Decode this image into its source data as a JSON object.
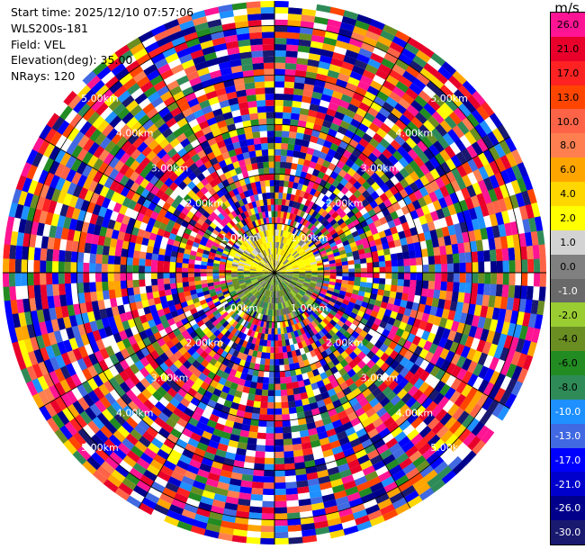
{
  "header": {
    "start_time": "Start time: 2025/12/10 07:57:06",
    "station": "WLS200s-181",
    "field": "Field: VEL",
    "elevation": "Elevation(deg): 35.00",
    "nrays": "NRays: 120"
  },
  "chart_data": {
    "type": "heatmap",
    "title": "",
    "colorbar": {
      "unit": "m/s",
      "bands": [
        {
          "label": "26.0",
          "color": "#ff1493"
        },
        {
          "label": "21.0",
          "color": "#e8002a"
        },
        {
          "label": "17.0",
          "color": "#ff2222"
        },
        {
          "label": "13.0",
          "color": "#ff4500"
        },
        {
          "label": "10.0",
          "color": "#ff6347"
        },
        {
          "label": "8.0",
          "color": "#ff7f50"
        },
        {
          "label": "6.0",
          "color": "#ffa500"
        },
        {
          "label": "4.0",
          "color": "#ffd700"
        },
        {
          "label": "2.0",
          "color": "#ffff00"
        },
        {
          "label": "1.0",
          "color": "#d3d3d3"
        },
        {
          "label": "0.0",
          "color": "#808080"
        },
        {
          "label": "-1.0",
          "color": "#696969"
        },
        {
          "label": "-2.0",
          "color": "#9acd32"
        },
        {
          "label": "-4.0",
          "color": "#6b8e23"
        },
        {
          "label": "-6.0",
          "color": "#228b22"
        },
        {
          "label": "-8.0",
          "color": "#2e8b57"
        },
        {
          "label": "-10.0",
          "color": "#1e90ff"
        },
        {
          "label": "-13.0",
          "color": "#4169e1"
        },
        {
          "label": "-17.0",
          "color": "#0000ff"
        },
        {
          "label": "-21.0",
          "color": "#0000cd"
        },
        {
          "label": "-26.0",
          "color": "#00008b"
        },
        {
          "label": "-30.0",
          "color": "#191970"
        }
      ]
    },
    "range_rings": {
      "labels": [
        "1.00km",
        "2.00km",
        "3.00km",
        "4.00km",
        "5.00km"
      ],
      "max_range_km": 5.5
    },
    "rays": 120,
    "inner_echo": {
      "note": "weak-signal core: positive velocities north, negative velocities south"
    }
  }
}
